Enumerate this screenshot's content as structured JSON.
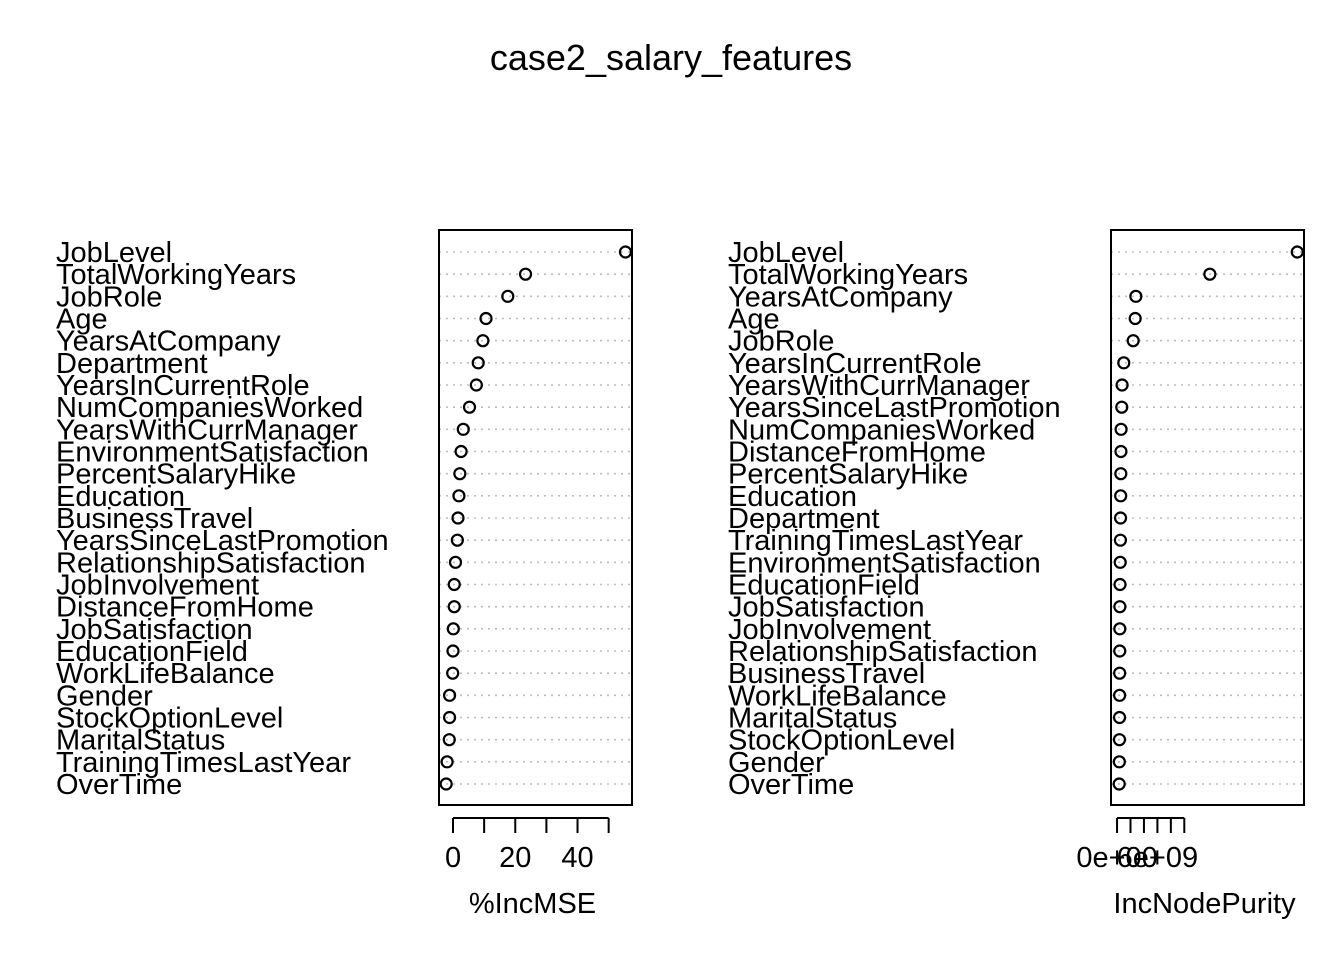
{
  "chart_data": {
    "title": "case2_salary_features",
    "panels": [
      {
        "type": "scatter",
        "xlabel": "%IncMSE",
        "xlim": [
          -4.5,
          57.5
        ],
        "xticks": [
          0,
          10,
          20,
          30,
          40,
          50
        ],
        "xtick_labels": [
          "0",
          "",
          "20",
          "",
          "40",
          ""
        ],
        "grid": true,
        "categories": [
          "JobLevel",
          "TotalWorkingYears",
          "JobRole",
          "Age",
          "YearsAtCompany",
          "Department",
          "YearsInCurrentRole",
          "NumCompaniesWorked",
          "YearsWithCurrManager",
          "EnvironmentSatisfaction",
          "PercentSalaryHike",
          "Education",
          "BusinessTravel",
          "YearsSinceLastPromotion",
          "RelationshipSatisfaction",
          "JobInvolvement",
          "DistanceFromHome",
          "JobSatisfaction",
          "EducationField",
          "WorkLifeBalance",
          "Gender",
          "StockOptionLevel",
          "MaritalStatus",
          "TrainingTimesLastYear",
          "OverTime"
        ],
        "values": [
          55.4,
          23.3,
          17.6,
          10.6,
          9.6,
          8.1,
          7.5,
          5.3,
          3.3,
          2.6,
          2.2,
          1.9,
          1.6,
          1.4,
          0.8,
          0.4,
          0.4,
          0.1,
          0,
          -0.1,
          -1.1,
          -1.1,
          -1.2,
          -1.9,
          -2.2
        ]
      },
      {
        "type": "scatter",
        "xlabel": "IncNodePurity",
        "xlim": [
          -900000000,
          27800000000
        ],
        "xticks": [
          0,
          2000000000,
          4000000000,
          6000000000,
          8000000000,
          10000000000
        ],
        "xtick_labels": [
          "0e+00",
          "",
          "",
          "6e+09",
          "",
          ""
        ],
        "grid": true,
        "categories": [
          "JobLevel",
          "TotalWorkingYears",
          "YearsAtCompany",
          "Age",
          "JobRole",
          "YearsInCurrentRole",
          "YearsWithCurrManager",
          "YearsSinceLastPromotion",
          "NumCompaniesWorked",
          "DistanceFromHome",
          "PercentSalaryHike",
          "Education",
          "Department",
          "TrainingTimesLastYear",
          "EnvironmentSatisfaction",
          "EducationField",
          "JobSatisfaction",
          "JobInvolvement",
          "RelationshipSatisfaction",
          "BusinessTravel",
          "WorkLifeBalance",
          "MaritalStatus",
          "StockOptionLevel",
          "Gender",
          "OverTime"
        ],
        "values": [
          26800000000,
          13800000000,
          2800000000,
          2700000000,
          2400000000,
          1000000000,
          750000000,
          700000000,
          600000000,
          580000000,
          560000000,
          540000000,
          520000000,
          500000000,
          470000000,
          440000000,
          420000000,
          410000000,
          400000000,
          390000000,
          380000000,
          370000000,
          360000000,
          340000000,
          320000000
        ]
      }
    ]
  }
}
